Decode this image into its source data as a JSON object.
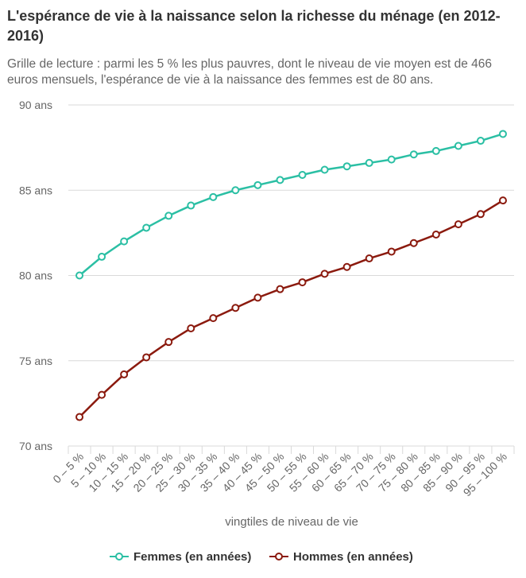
{
  "title": "L'espérance de vie à la naissance selon la richesse du ménage (en 2012-2016)",
  "subtitle": "Grille de lecture : parmi les 5 % les plus pauvres, dont le niveau de vie moyen est de 466 euros mensuels, l'espérance de vie à la naissance des femmes est de 80 ans.",
  "colors": {
    "femmes": "#2bbfa4",
    "hommes": "#8b1a0e",
    "grid": "#d9d9d9",
    "axis": "#666666"
  },
  "chart_data": {
    "type": "line",
    "title": "L'espérance de vie à la naissance selon la richesse du ménage (en 2012-2016)",
    "xlabel": "vingtiles de niveau de vie",
    "ylabel": "",
    "ylim": [
      70,
      90
    ],
    "yticks": [
      70,
      75,
      80,
      85,
      90
    ],
    "ytick_labels": [
      "70 ans",
      "75 ans",
      "80 ans",
      "85 ans",
      "90 ans"
    ],
    "categories": [
      "0 – 5 %",
      "5 – 10 %",
      "10 – 15 %",
      "15 – 20 %",
      "20 – 25 %",
      "25 – 30 %",
      "30 – 35 %",
      "35 – 40 %",
      "40 – 45 %",
      "45 – 50 %",
      "50 – 55 %",
      "55 – 60 %",
      "60 – 65 %",
      "65 – 70 %",
      "70 – 75 %",
      "75 – 80 %",
      "80 – 85 %",
      "85 – 90 %",
      "90 – 95 %",
      "95 – 100 %"
    ],
    "series": [
      {
        "name": "Femmes (en années)",
        "color": "#2bbfa4",
        "values": [
          80.0,
          81.1,
          82.0,
          82.8,
          83.5,
          84.1,
          84.6,
          85.0,
          85.3,
          85.6,
          85.9,
          86.2,
          86.4,
          86.6,
          86.8,
          87.1,
          87.3,
          87.6,
          87.9,
          88.3
        ]
      },
      {
        "name": "Hommes (en années)",
        "color": "#8b1a0e",
        "values": [
          71.7,
          73.0,
          74.2,
          75.2,
          76.1,
          76.9,
          77.5,
          78.1,
          78.7,
          79.2,
          79.6,
          80.1,
          80.5,
          81.0,
          81.4,
          81.9,
          82.4,
          83.0,
          83.6,
          84.4
        ]
      }
    ],
    "legend_position": "bottom-center",
    "grid": true
  }
}
